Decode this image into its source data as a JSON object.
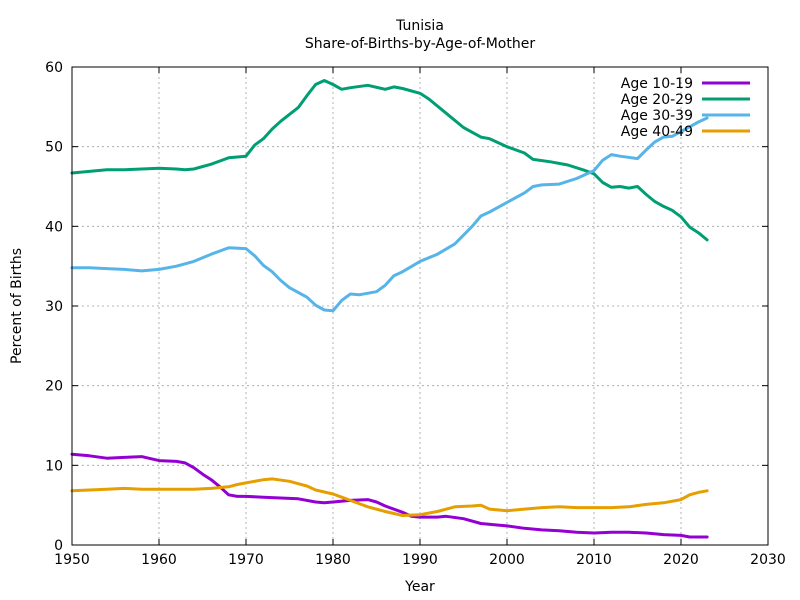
{
  "chart_data": {
    "type": "line",
    "title": "Tunisia",
    "subtitle": "Share-of-Births-by-Age-of-Mother",
    "xlabel": "Year",
    "ylabel": "Percent of Births",
    "xlim": [
      1950,
      2030
    ],
    "ylim": [
      0,
      60
    ],
    "xticks": [
      1950,
      1960,
      1970,
      1980,
      1990,
      2000,
      2010,
      2020,
      2030
    ],
    "yticks": [
      0,
      10,
      20,
      30,
      40,
      50,
      60
    ],
    "grid": true,
    "legend_position": "top-right",
    "series": [
      {
        "name": "Age 10-19",
        "color": "#9400d3",
        "points": [
          [
            1950,
            11.4
          ],
          [
            1952,
            11.2
          ],
          [
            1954,
            10.9
          ],
          [
            1956,
            11.0
          ],
          [
            1958,
            11.1
          ],
          [
            1960,
            10.6
          ],
          [
            1962,
            10.5
          ],
          [
            1963,
            10.3
          ],
          [
            1964,
            9.7
          ],
          [
            1965,
            8.9
          ],
          [
            1966,
            8.2
          ],
          [
            1967,
            7.3
          ],
          [
            1968,
            6.3
          ],
          [
            1969,
            6.1
          ],
          [
            1970,
            6.1
          ],
          [
            1972,
            6.0
          ],
          [
            1974,
            5.9
          ],
          [
            1976,
            5.8
          ],
          [
            1978,
            5.4
          ],
          [
            1979,
            5.3
          ],
          [
            1980,
            5.4
          ],
          [
            1982,
            5.6
          ],
          [
            1984,
            5.7
          ],
          [
            1985,
            5.4
          ],
          [
            1986,
            4.9
          ],
          [
            1988,
            4.1
          ],
          [
            1989,
            3.6
          ],
          [
            1990,
            3.5
          ],
          [
            1992,
            3.5
          ],
          [
            1993,
            3.6
          ],
          [
            1995,
            3.3
          ],
          [
            1997,
            2.7
          ],
          [
            1999,
            2.5
          ],
          [
            2000,
            2.4
          ],
          [
            2002,
            2.1
          ],
          [
            2004,
            1.9
          ],
          [
            2006,
            1.8
          ],
          [
            2008,
            1.6
          ],
          [
            2010,
            1.5
          ],
          [
            2012,
            1.6
          ],
          [
            2014,
            1.6
          ],
          [
            2016,
            1.5
          ],
          [
            2018,
            1.3
          ],
          [
            2020,
            1.2
          ],
          [
            2021,
            1.0
          ],
          [
            2023,
            1.0
          ]
        ]
      },
      {
        "name": "Age 20-29",
        "color": "#009e73",
        "points": [
          [
            1950,
            46.7
          ],
          [
            1952,
            46.9
          ],
          [
            1954,
            47.1
          ],
          [
            1956,
            47.1
          ],
          [
            1958,
            47.2
          ],
          [
            1960,
            47.3
          ],
          [
            1962,
            47.2
          ],
          [
            1963,
            47.1
          ],
          [
            1964,
            47.2
          ],
          [
            1966,
            47.8
          ],
          [
            1967,
            48.2
          ],
          [
            1968,
            48.6
          ],
          [
            1969,
            48.7
          ],
          [
            1970,
            48.8
          ],
          [
            1971,
            50.2
          ],
          [
            1972,
            51.0
          ],
          [
            1973,
            52.2
          ],
          [
            1974,
            53.2
          ],
          [
            1976,
            54.9
          ],
          [
            1977,
            56.4
          ],
          [
            1978,
            57.8
          ],
          [
            1979,
            58.3
          ],
          [
            1980,
            57.8
          ],
          [
            1981,
            57.2
          ],
          [
            1982,
            57.4
          ],
          [
            1984,
            57.7
          ],
          [
            1986,
            57.2
          ],
          [
            1987,
            57.5
          ],
          [
            1988,
            57.3
          ],
          [
            1990,
            56.7
          ],
          [
            1991,
            56.0
          ],
          [
            1993,
            54.2
          ],
          [
            1995,
            52.4
          ],
          [
            1997,
            51.2
          ],
          [
            1998,
            51.0
          ],
          [
            2000,
            50.0
          ],
          [
            2002,
            49.2
          ],
          [
            2003,
            48.4
          ],
          [
            2005,
            48.1
          ],
          [
            2007,
            47.7
          ],
          [
            2009,
            47.0
          ],
          [
            2010,
            46.6
          ],
          [
            2011,
            45.5
          ],
          [
            2012,
            44.9
          ],
          [
            2013,
            45.0
          ],
          [
            2014,
            44.8
          ],
          [
            2015,
            45.0
          ],
          [
            2016,
            44.0
          ],
          [
            2017,
            43.1
          ],
          [
            2018,
            42.5
          ],
          [
            2019,
            42.0
          ],
          [
            2020,
            41.2
          ],
          [
            2021,
            39.9
          ],
          [
            2022,
            39.2
          ],
          [
            2023,
            38.3
          ]
        ]
      },
      {
        "name": "Age 30-39",
        "color": "#56b4e9",
        "points": [
          [
            1950,
            34.8
          ],
          [
            1952,
            34.8
          ],
          [
            1954,
            34.7
          ],
          [
            1956,
            34.6
          ],
          [
            1958,
            34.4
          ],
          [
            1960,
            34.6
          ],
          [
            1962,
            35.0
          ],
          [
            1964,
            35.6
          ],
          [
            1966,
            36.5
          ],
          [
            1967,
            36.9
          ],
          [
            1968,
            37.3
          ],
          [
            1970,
            37.2
          ],
          [
            1971,
            36.3
          ],
          [
            1972,
            35.1
          ],
          [
            1973,
            34.3
          ],
          [
            1974,
            33.2
          ],
          [
            1975,
            32.3
          ],
          [
            1977,
            31.1
          ],
          [
            1978,
            30.1
          ],
          [
            1979,
            29.5
          ],
          [
            1980,
            29.4
          ],
          [
            1981,
            30.7
          ],
          [
            1982,
            31.5
          ],
          [
            1983,
            31.4
          ],
          [
            1985,
            31.8
          ],
          [
            1986,
            32.6
          ],
          [
            1987,
            33.8
          ],
          [
            1988,
            34.3
          ],
          [
            1990,
            35.6
          ],
          [
            1992,
            36.5
          ],
          [
            1994,
            37.8
          ],
          [
            1996,
            40.0
          ],
          [
            1997,
            41.3
          ],
          [
            1998,
            41.8
          ],
          [
            2000,
            43.0
          ],
          [
            2002,
            44.2
          ],
          [
            2003,
            45.0
          ],
          [
            2004,
            45.2
          ],
          [
            2006,
            45.3
          ],
          [
            2008,
            46.0
          ],
          [
            2010,
            47.0
          ],
          [
            2011,
            48.3
          ],
          [
            2012,
            49.0
          ],
          [
            2013,
            48.8
          ],
          [
            2015,
            48.5
          ],
          [
            2016,
            49.6
          ],
          [
            2017,
            50.6
          ],
          [
            2018,
            51.2
          ],
          [
            2019,
            51.3
          ],
          [
            2020,
            51.9
          ],
          [
            2021,
            52.5
          ],
          [
            2022,
            53.1
          ],
          [
            2023,
            53.6
          ]
        ]
      },
      {
        "name": "Age 40-49",
        "color": "#e69f00",
        "points": [
          [
            1950,
            6.8
          ],
          [
            1952,
            6.9
          ],
          [
            1954,
            7.0
          ],
          [
            1956,
            7.1
          ],
          [
            1958,
            7.0
          ],
          [
            1960,
            7.0
          ],
          [
            1962,
            7.0
          ],
          [
            1964,
            7.0
          ],
          [
            1966,
            7.1
          ],
          [
            1968,
            7.3
          ],
          [
            1969,
            7.6
          ],
          [
            1970,
            7.8
          ],
          [
            1972,
            8.2
          ],
          [
            1973,
            8.3
          ],
          [
            1975,
            8.0
          ],
          [
            1976,
            7.7
          ],
          [
            1977,
            7.4
          ],
          [
            1978,
            6.9
          ],
          [
            1980,
            6.4
          ],
          [
            1981,
            6.0
          ],
          [
            1982,
            5.6
          ],
          [
            1983,
            5.2
          ],
          [
            1984,
            4.8
          ],
          [
            1986,
            4.2
          ],
          [
            1988,
            3.7
          ],
          [
            1990,
            3.8
          ],
          [
            1992,
            4.2
          ],
          [
            1994,
            4.8
          ],
          [
            1996,
            4.9
          ],
          [
            1997,
            5.0
          ],
          [
            1998,
            4.5
          ],
          [
            2000,
            4.3
          ],
          [
            2002,
            4.5
          ],
          [
            2004,
            4.7
          ],
          [
            2006,
            4.8
          ],
          [
            2008,
            4.7
          ],
          [
            2010,
            4.7
          ],
          [
            2012,
            4.7
          ],
          [
            2014,
            4.8
          ],
          [
            2016,
            5.1
          ],
          [
            2018,
            5.3
          ],
          [
            2020,
            5.7
          ],
          [
            2021,
            6.3
          ],
          [
            2022,
            6.6
          ],
          [
            2023,
            6.8
          ]
        ]
      }
    ]
  }
}
